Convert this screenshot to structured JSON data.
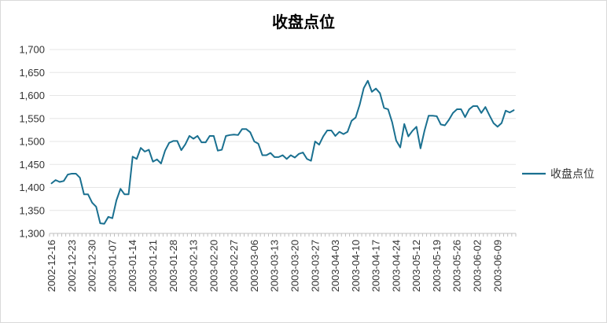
{
  "chart_data": {
    "type": "line",
    "title": "收盘点位",
    "xlabel": "",
    "ylabel": "",
    "ylim": [
      1300,
      1700
    ],
    "y_ticks": [
      "1,300",
      "1,350",
      "1,400",
      "1,450",
      "1,500",
      "1,550",
      "1,600",
      "1,650",
      "1,700"
    ],
    "y_tick_values": [
      1300,
      1350,
      1400,
      1450,
      1500,
      1550,
      1600,
      1650,
      1700
    ],
    "x_tick_labels": [
      "2002-12-16",
      "2002-12-23",
      "2002-12-30",
      "2003-01-07",
      "2003-01-14",
      "2003-01-21",
      "2003-01-28",
      "2003-02-13",
      "2003-02-20",
      "2003-02-27",
      "2003-03-06",
      "2003-03-13",
      "2003-03-20",
      "2003-03-27",
      "2003-04-03",
      "2003-04-10",
      "2003-04-17",
      "2003-04-24",
      "2003-05-12",
      "2003-05-19",
      "2003-05-26",
      "2003-06-02",
      "2003-06-09"
    ],
    "legend_position": "right",
    "grid": true,
    "series": [
      {
        "name": "收盘点位",
        "color": "#1a7090",
        "values": [
          1409,
          1416,
          1412,
          1414,
          1428,
          1430,
          1430,
          1421,
          1385,
          1385,
          1367,
          1358,
          1322,
          1321,
          1336,
          1333,
          1372,
          1397,
          1385,
          1385,
          1467,
          1462,
          1486,
          1478,
          1482,
          1456,
          1461,
          1452,
          1480,
          1497,
          1501,
          1501,
          1481,
          1494,
          1512,
          1506,
          1512,
          1498,
          1498,
          1512,
          1512,
          1480,
          1482,
          1512,
          1514,
          1515,
          1514,
          1527,
          1527,
          1520,
          1500,
          1495,
          1470,
          1470,
          1475,
          1466,
          1466,
          1470,
          1462,
          1470,
          1465,
          1473,
          1476,
          1462,
          1458,
          1500,
          1493,
          1511,
          1524,
          1524,
          1512,
          1521,
          1516,
          1521,
          1545,
          1552,
          1580,
          1616,
          1632,
          1608,
          1615,
          1605,
          1573,
          1570,
          1542,
          1502,
          1487,
          1538,
          1511,
          1523,
          1532,
          1485,
          1524,
          1556,
          1556,
          1555,
          1537,
          1535,
          1547,
          1562,
          1570,
          1570,
          1553,
          1570,
          1577,
          1577,
          1562,
          1575,
          1557,
          1540,
          1532,
          1540,
          1567,
          1563,
          1568
        ]
      }
    ]
  }
}
